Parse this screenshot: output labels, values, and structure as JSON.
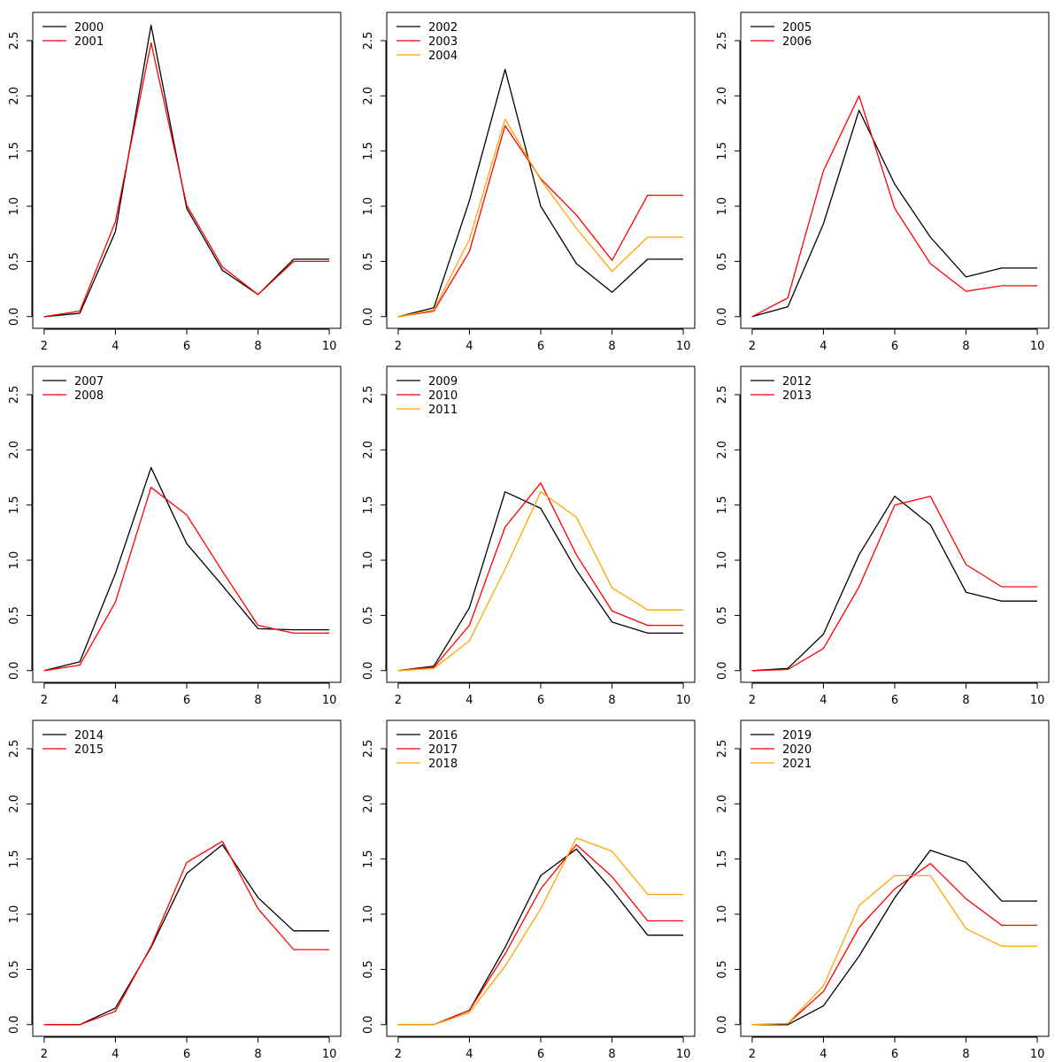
{
  "colors": {
    "background": "#ffffff",
    "axis": "#000000"
  },
  "chart_data": [
    {
      "type": "line",
      "x": [
        2,
        3,
        4,
        5,
        6,
        7,
        8,
        9,
        10
      ],
      "xlim": [
        2,
        10
      ],
      "ylim": [
        0,
        2.65
      ],
      "xticks": [
        "2",
        "4",
        "6",
        "8",
        "10"
      ],
      "yticks": [
        "0.0",
        "0.5",
        "1.0",
        "1.5",
        "2.0",
        "2.5"
      ],
      "legend_position": "top-left",
      "series": [
        {
          "name": "2000",
          "color": "#000000",
          "values": [
            0,
            0.03,
            0.77,
            2.64,
            0.98,
            0.42,
            0.2,
            0.52,
            0.52
          ]
        },
        {
          "name": "2001",
          "color": "#ff0000",
          "values": [
            0,
            0.05,
            0.86,
            2.48,
            1.01,
            0.45,
            0.2,
            0.5,
            0.5
          ]
        }
      ]
    },
    {
      "type": "line",
      "x": [
        2,
        3,
        4,
        5,
        6,
        7,
        8,
        9,
        10
      ],
      "xlim": [
        2,
        10
      ],
      "ylim": [
        0,
        2.65
      ],
      "xticks": [
        "2",
        "4",
        "6",
        "8",
        "10"
      ],
      "yticks": [
        "0.0",
        "0.5",
        "1.0",
        "1.5",
        "2.0",
        "2.5"
      ],
      "legend_position": "top-left",
      "series": [
        {
          "name": "2002",
          "color": "#000000",
          "values": [
            0,
            0.08,
            1.05,
            2.24,
            1.0,
            0.48,
            0.22,
            0.52,
            0.52
          ]
        },
        {
          "name": "2003",
          "color": "#ff0000",
          "values": [
            0,
            0.05,
            0.59,
            1.73,
            1.25,
            0.92,
            0.51,
            1.1,
            1.1
          ]
        },
        {
          "name": "2004",
          "color": "#ffa500",
          "values": [
            0,
            0.06,
            0.7,
            1.79,
            1.24,
            0.8,
            0.41,
            0.72,
            0.72
          ]
        }
      ]
    },
    {
      "type": "line",
      "x": [
        2,
        3,
        4,
        5,
        6,
        7,
        8,
        9,
        10
      ],
      "xlim": [
        2,
        10
      ],
      "ylim": [
        0,
        2.65
      ],
      "xticks": [
        "2",
        "4",
        "6",
        "8",
        "10"
      ],
      "yticks": [
        "0.0",
        "0.5",
        "1.0",
        "1.5",
        "2.0",
        "2.5"
      ],
      "legend_position": "top-left",
      "series": [
        {
          "name": "2005",
          "color": "#000000",
          "values": [
            0,
            0.09,
            0.84,
            1.87,
            1.2,
            0.72,
            0.36,
            0.44,
            0.44
          ]
        },
        {
          "name": "2006",
          "color": "#ff0000",
          "values": [
            0,
            0.17,
            1.32,
            2.0,
            0.98,
            0.48,
            0.23,
            0.28,
            0.28
          ]
        }
      ]
    },
    {
      "type": "line",
      "x": [
        2,
        3,
        4,
        5,
        6,
        7,
        8,
        9,
        10
      ],
      "xlim": [
        2,
        10
      ],
      "ylim": [
        0,
        2.65
      ],
      "xticks": [
        "2",
        "4",
        "6",
        "8",
        "10"
      ],
      "yticks": [
        "0.0",
        "0.5",
        "1.0",
        "1.5",
        "2.0",
        "2.5"
      ],
      "legend_position": "top-left",
      "series": [
        {
          "name": "2007",
          "color": "#000000",
          "values": [
            0,
            0.08,
            0.88,
            1.84,
            1.15,
            0.77,
            0.38,
            0.37,
            0.37
          ]
        },
        {
          "name": "2008",
          "color": "#ff0000",
          "values": [
            0,
            0.05,
            0.62,
            1.66,
            1.41,
            0.9,
            0.41,
            0.34,
            0.34
          ]
        }
      ]
    },
    {
      "type": "line",
      "x": [
        2,
        3,
        4,
        5,
        6,
        7,
        8,
        9,
        10
      ],
      "xlim": [
        2,
        10
      ],
      "ylim": [
        0,
        2.65
      ],
      "xticks": [
        "2",
        "4",
        "6",
        "8",
        "10"
      ],
      "yticks": [
        "0.0",
        "0.5",
        "1.0",
        "1.5",
        "2.0",
        "2.5"
      ],
      "legend_position": "top-left",
      "series": [
        {
          "name": "2009",
          "color": "#000000",
          "values": [
            0,
            0.04,
            0.57,
            1.62,
            1.47,
            0.91,
            0.44,
            0.34,
            0.34
          ]
        },
        {
          "name": "2010",
          "color": "#ff0000",
          "values": [
            0,
            0.03,
            0.41,
            1.3,
            1.7,
            1.05,
            0.54,
            0.41,
            0.41
          ]
        },
        {
          "name": "2011",
          "color": "#ffa500",
          "values": [
            0,
            0.02,
            0.27,
            0.92,
            1.62,
            1.39,
            0.75,
            0.55,
            0.55
          ]
        }
      ]
    },
    {
      "type": "line",
      "x": [
        2,
        3,
        4,
        5,
        6,
        7,
        8,
        9,
        10
      ],
      "xlim": [
        2,
        10
      ],
      "ylim": [
        0,
        2.65
      ],
      "xticks": [
        "2",
        "4",
        "6",
        "8",
        "10"
      ],
      "yticks": [
        "0.0",
        "0.5",
        "1.0",
        "1.5",
        "2.0",
        "2.5"
      ],
      "legend_position": "top-left",
      "series": [
        {
          "name": "2012",
          "color": "#000000",
          "values": [
            0,
            0.02,
            0.33,
            1.05,
            1.58,
            1.32,
            0.71,
            0.63,
            0.63
          ]
        },
        {
          "name": "2013",
          "color": "#ff0000",
          "values": [
            0,
            0.01,
            0.2,
            0.76,
            1.5,
            1.58,
            0.96,
            0.76,
            0.76
          ]
        }
      ]
    },
    {
      "type": "line",
      "x": [
        2,
        3,
        4,
        5,
        6,
        7,
        8,
        9,
        10
      ],
      "xlim": [
        2,
        10
      ],
      "ylim": [
        0,
        2.65
      ],
      "xticks": [
        "2",
        "4",
        "6",
        "8",
        "10"
      ],
      "yticks": [
        "0.0",
        "0.5",
        "1.0",
        "1.5",
        "2.0",
        "2.5"
      ],
      "legend_position": "top-left",
      "series": [
        {
          "name": "2014",
          "color": "#000000",
          "values": [
            0,
            0.0,
            0.15,
            0.7,
            1.37,
            1.63,
            1.15,
            0.85,
            0.85
          ]
        },
        {
          "name": "2015",
          "color": "#ff0000",
          "values": [
            0,
            0.0,
            0.12,
            0.71,
            1.47,
            1.66,
            1.05,
            0.68,
            0.68
          ]
        }
      ]
    },
    {
      "type": "line",
      "x": [
        2,
        3,
        4,
        5,
        6,
        7,
        8,
        9,
        10
      ],
      "xlim": [
        2,
        10
      ],
      "ylim": [
        0,
        2.65
      ],
      "xticks": [
        "2",
        "4",
        "6",
        "8",
        "10"
      ],
      "yticks": [
        "0.0",
        "0.5",
        "1.0",
        "1.5",
        "2.0",
        "2.5"
      ],
      "legend_position": "top-left",
      "series": [
        {
          "name": "2016",
          "color": "#000000",
          "values": [
            0,
            0.0,
            0.13,
            0.7,
            1.35,
            1.59,
            1.22,
            0.81,
            0.81
          ]
        },
        {
          "name": "2017",
          "color": "#ff0000",
          "values": [
            0,
            0.0,
            0.13,
            0.64,
            1.23,
            1.63,
            1.34,
            0.94,
            0.94
          ]
        },
        {
          "name": "2018",
          "color": "#ffa500",
          "values": [
            0,
            0.0,
            0.11,
            0.53,
            1.05,
            1.69,
            1.57,
            1.18,
            1.18
          ]
        }
      ]
    },
    {
      "type": "line",
      "x": [
        2,
        3,
        4,
        5,
        6,
        7,
        8,
        9,
        10
      ],
      "xlim": [
        2,
        10
      ],
      "ylim": [
        0,
        2.65
      ],
      "xticks": [
        "2",
        "4",
        "6",
        "8",
        "10"
      ],
      "yticks": [
        "0.0",
        "0.5",
        "1.0",
        "1.5",
        "2.0",
        "2.5"
      ],
      "legend_position": "top-left",
      "series": [
        {
          "name": "2019",
          "color": "#000000",
          "values": [
            0,
            0.0,
            0.17,
            0.62,
            1.15,
            1.58,
            1.47,
            1.12,
            1.12
          ]
        },
        {
          "name": "2020",
          "color": "#ff0000",
          "values": [
            0,
            0.01,
            0.3,
            0.88,
            1.23,
            1.46,
            1.14,
            0.9,
            0.9
          ]
        },
        {
          "name": "2021",
          "color": "#ffa500",
          "values": [
            0,
            0.01,
            0.35,
            1.08,
            1.35,
            1.35,
            0.87,
            0.71,
            0.71
          ]
        }
      ]
    }
  ]
}
